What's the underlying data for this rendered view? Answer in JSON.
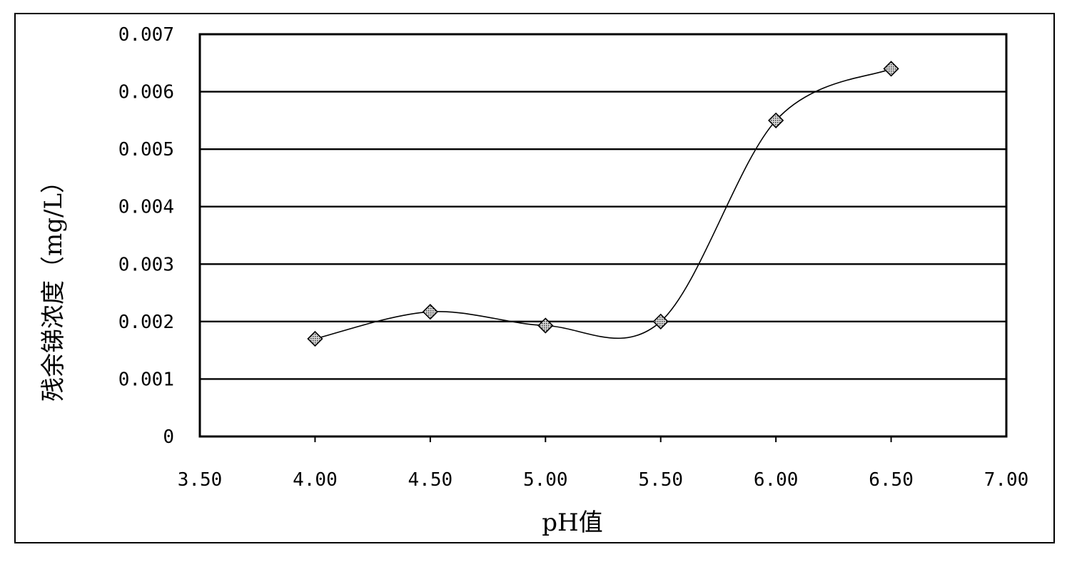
{
  "chart_data": {
    "type": "line",
    "title": "",
    "xlabel": "pH值",
    "ylabel": "残余锑浓度（mg/L）",
    "xlim": [
      3.5,
      7.0
    ],
    "ylim": [
      0,
      0.007
    ],
    "x_ticks": [
      "3.50",
      "4.00",
      "4.50",
      "5.00",
      "5.50",
      "6.00",
      "6.50",
      "7.00"
    ],
    "y_ticks": [
      "0",
      "0.001",
      "0.002",
      "0.003",
      "0.004",
      "0.005",
      "0.006",
      "0.007"
    ],
    "x_tick_values": [
      3.5,
      4.0,
      4.5,
      5.0,
      5.5,
      6.0,
      6.5,
      7.0
    ],
    "y_tick_values": [
      0,
      0.001,
      0.002,
      0.003,
      0.004,
      0.005,
      0.006,
      0.007
    ],
    "grid": "horizontal",
    "smooth": true,
    "marker": "diamond",
    "series": [
      {
        "x": [
          4.0,
          4.5,
          5.0,
          5.5,
          6.0,
          6.5
        ],
        "y": [
          0.0017,
          0.00217,
          0.00193,
          0.002,
          0.0055,
          0.0064
        ]
      }
    ]
  }
}
